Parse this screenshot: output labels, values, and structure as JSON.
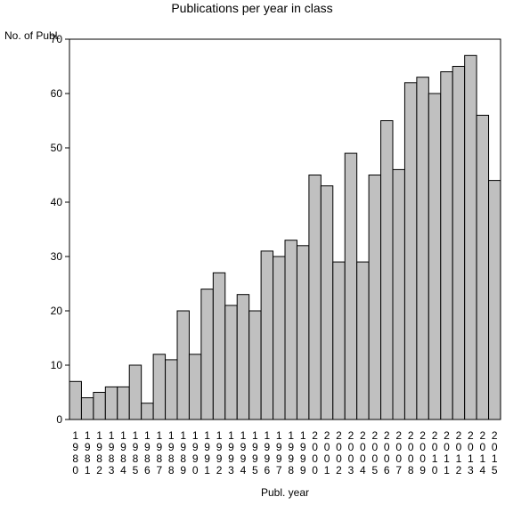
{
  "chart_data": {
    "type": "bar",
    "title": "Publications per year in class",
    "ylabel": "No. of Publ.",
    "xlabel": "Publ. year",
    "ylim": [
      0,
      70
    ],
    "yticks": [
      0,
      10,
      20,
      30,
      40,
      50,
      60,
      70
    ],
    "categories": [
      "1980",
      "1981",
      "1982",
      "1983",
      "1984",
      "1985",
      "1986",
      "1987",
      "1988",
      "1989",
      "1990",
      "1991",
      "1992",
      "1993",
      "1994",
      "1995",
      "1996",
      "1997",
      "1998",
      "1999",
      "2000",
      "2001",
      "2002",
      "2003",
      "2004",
      "2005",
      "2006",
      "2007",
      "2008",
      "2009",
      "2010",
      "2011",
      "2012",
      "2013",
      "2014",
      "2015"
    ],
    "values": [
      7,
      4,
      5,
      6,
      6,
      10,
      3,
      12,
      11,
      20,
      12,
      24,
      27,
      21,
      23,
      20,
      31,
      30,
      33,
      32,
      45,
      43,
      29,
      49,
      29,
      45,
      55,
      46,
      62,
      63,
      60,
      64,
      65,
      67,
      56,
      44
    ],
    "bar_color": "#c0c0c0",
    "bar_stroke": "#000000",
    "grid": false
  }
}
